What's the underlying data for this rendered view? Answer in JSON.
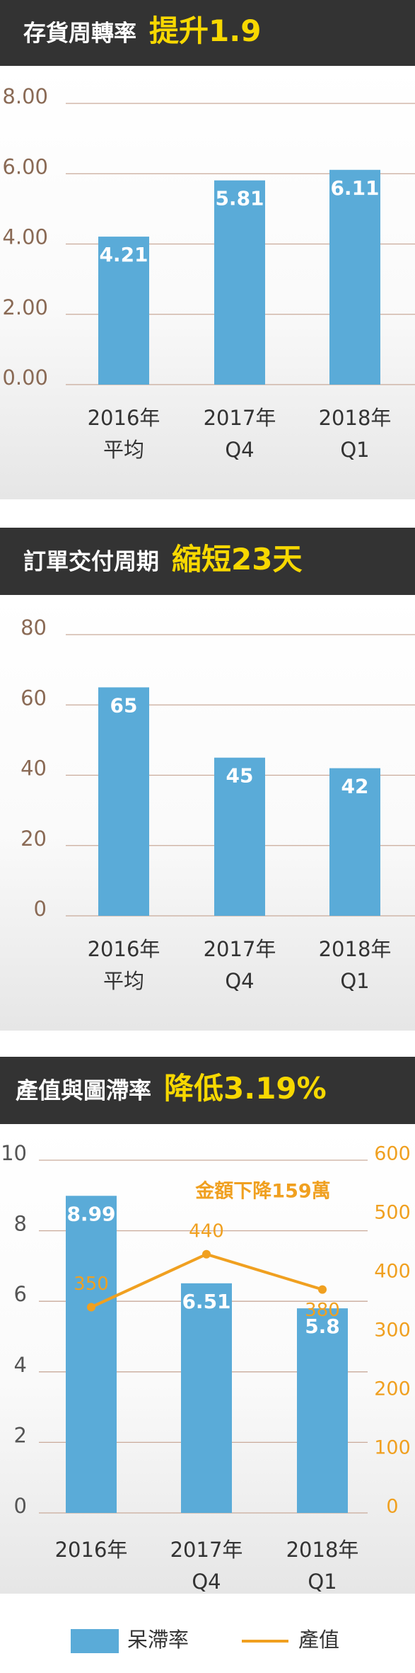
{
  "chart_data": [
    {
      "type": "bar",
      "title": "存貨周轉率",
      "headline": "提升1.9",
      "categories": [
        [
          "2016年",
          "平均"
        ],
        [
          "2017年",
          "Q4"
        ],
        [
          "2018年",
          "Q1"
        ]
      ],
      "values": [
        4.21,
        5.81,
        6.11
      ],
      "color": "#5aabd8",
      "ylim": [
        0,
        8
      ],
      "yticks": [
        {
          "value": 0,
          "label": "0.00"
        },
        {
          "value": 2,
          "label": "2.00"
        },
        {
          "value": 4,
          "label": "4.00"
        },
        {
          "value": 6,
          "label": "6.00"
        },
        {
          "value": 8,
          "label": "8.00"
        }
      ],
      "grid": true
    },
    {
      "type": "bar",
      "title": "訂單交付周期",
      "headline": "縮短23天",
      "categories": [
        [
          "2016年",
          "平均"
        ],
        [
          "2017年",
          "Q4"
        ],
        [
          "2018年",
          "Q1"
        ]
      ],
      "values": [
        65,
        45,
        42
      ],
      "color": "#5aabd8",
      "ylim": [
        0,
        80
      ],
      "yticks": [
        0,
        20,
        40,
        60,
        80
      ],
      "grid": true
    },
    {
      "type": "combo",
      "title": "產值與圖滯率",
      "headline": "降低3.19%",
      "annotation": "金額下降159萬",
      "categories": [
        [
          "2016年"
        ],
        [
          "2017年",
          "Q4"
        ],
        [
          "2018年",
          "Q1"
        ]
      ],
      "series": [
        {
          "name": "呆滯率",
          "color": "#5aabd8",
          "values": [
            8.99,
            6.51,
            5.8
          ]
        },
        {
          "name": "產值",
          "color": "#f0a020",
          "axis": "y2",
          "values": [
            350,
            440,
            380
          ]
        }
      ],
      "ylim": [
        0,
        10
      ],
      "yticks": [
        0,
        2,
        4,
        6,
        8,
        10
      ],
      "y2lim": [
        0,
        600
      ],
      "y2ticks": [
        0,
        100,
        200,
        300,
        400,
        500,
        600
      ],
      "grid": true,
      "legend": "bottom"
    }
  ]
}
